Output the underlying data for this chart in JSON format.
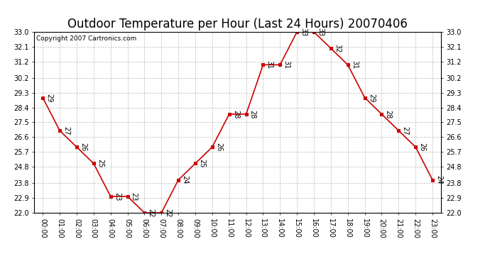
{
  "title": "Outdoor Temperature per Hour (Last 24 Hours) 20070406",
  "copyright": "Copyright 2007 Cartronics.com",
  "hours": [
    "00:00",
    "01:00",
    "02:00",
    "03:00",
    "04:00",
    "05:00",
    "06:00",
    "07:00",
    "08:00",
    "09:00",
    "10:00",
    "11:00",
    "12:00",
    "13:00",
    "14:00",
    "15:00",
    "16:00",
    "17:00",
    "18:00",
    "19:00",
    "20:00",
    "21:00",
    "22:00",
    "23:00"
  ],
  "values": [
    29,
    27,
    26,
    25,
    23,
    23,
    22,
    22,
    24,
    25,
    26,
    28,
    28,
    31,
    31,
    33,
    33,
    32,
    31,
    29,
    28,
    27,
    26,
    24
  ],
  "line_color": "#cc0000",
  "marker_color": "#cc0000",
  "bg_color": "#ffffff",
  "grid_color": "#bbbbbb",
  "ylim_min": 22.0,
  "ylim_max": 33.0,
  "yticks": [
    22.0,
    22.9,
    23.8,
    24.8,
    25.7,
    26.6,
    27.5,
    28.4,
    29.3,
    30.2,
    31.2,
    32.1,
    33.0
  ],
  "title_fontsize": 12,
  "annotation_fontsize": 7,
  "tick_fontsize": 7,
  "copyright_fontsize": 6.5
}
